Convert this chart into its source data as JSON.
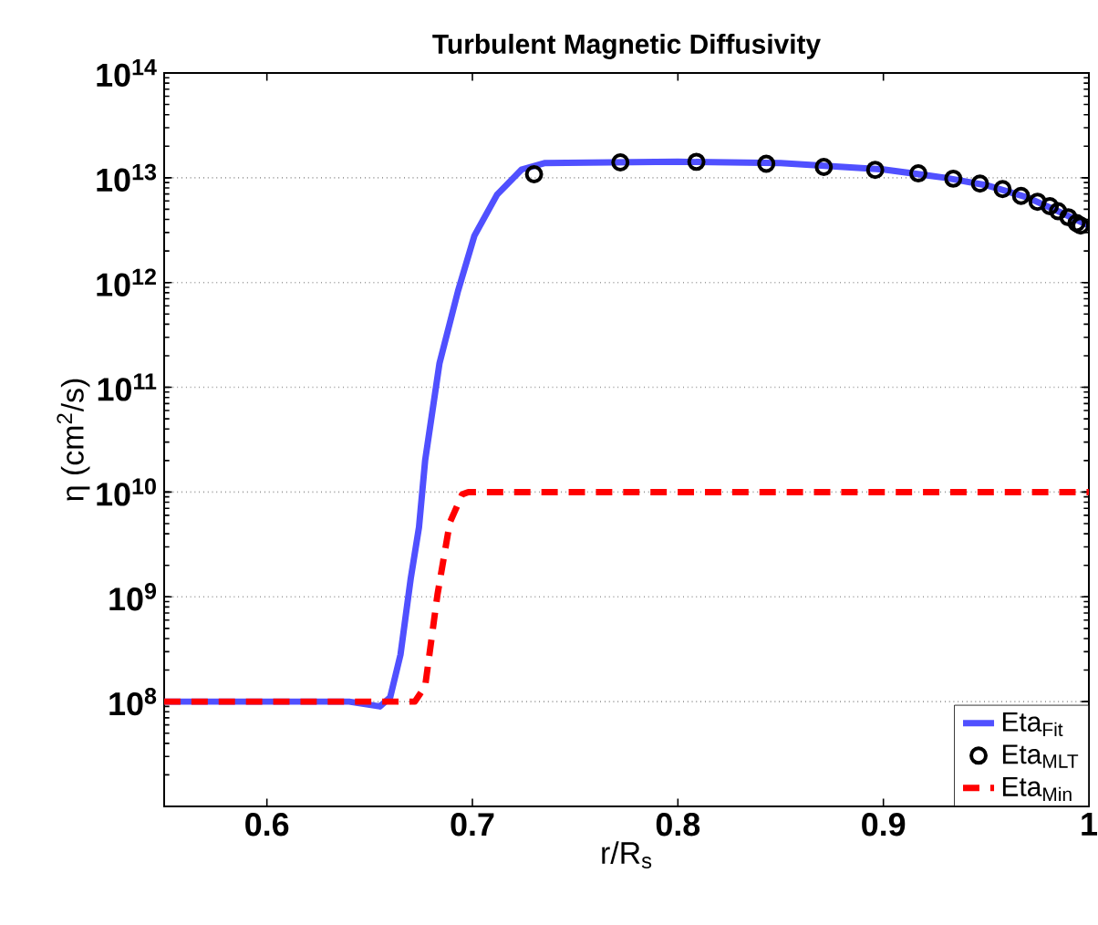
{
  "chart_data": {
    "type": "line",
    "title": "Turbulent Magnetic Diffusivity",
    "xlabel": "r/R$_{s}$",
    "ylabel": "η (cm$^{2}$/s)",
    "xlim": [
      0.55,
      1
    ],
    "xticks": [
      0.6,
      0.7,
      0.8,
      0.9,
      1
    ],
    "ylim": [
      10000000.0,
      100000000000000.0
    ],
    "log": "y",
    "yticks": [
      {
        "value": 10000000.0,
        "label": null
      },
      {
        "value": 100000000.0,
        "label": "10$^{8}$"
      },
      {
        "value": 1000000000.0,
        "label": "10$^{9}$"
      },
      {
        "value": 10000000000.0,
        "label": "10$^{10}$"
      },
      {
        "value": 100000000000.0,
        "label": "10$^{11}$"
      },
      {
        "value": 1000000000000.0,
        "label": "10$^{12}$"
      },
      {
        "value": 10000000000000.0,
        "label": "10$^{13}$"
      },
      {
        "value": 100000000000000.0,
        "label": "10$^{14}$"
      }
    ],
    "grid": "y",
    "legend": "bottom right",
    "series": [
      {
        "name": "Eta$_{Fit}$",
        "line_style": "solid",
        "marker": "none",
        "color": "#5050ff",
        "x": [
          0.55,
          0.64,
          0.655,
          0.66,
          0.665,
          0.67,
          0.674,
          0.677,
          0.684,
          0.693,
          0.701,
          0.712,
          0.724,
          0.735,
          0.8,
          0.85,
          0.9,
          0.93,
          0.95,
          0.97,
          0.985,
          1.0
        ],
        "values": [
          100000000.0,
          100000000.0,
          90000000.0,
          110000000.0,
          280000000.0,
          1500000000.0,
          4600000000.0,
          20000000000.0,
          170000000000.0,
          830000000000.0,
          2800000000000.0,
          6900000000000.0,
          12000000000000.0,
          13800000000000.0,
          14200000000000.0,
          13800000000000.0,
          12000000000000.0,
          10000000000000.0,
          8500000000000.0,
          6500000000000.0,
          4800000000000.0,
          3500000000000.0
        ]
      },
      {
        "name": "Eta$_{MLT}$",
        "type": "scatter",
        "marker": "circle",
        "color": "#000000",
        "x": [
          0.73,
          0.772,
          0.809,
          0.843,
          0.871,
          0.896,
          0.917,
          0.934,
          0.947,
          0.958,
          0.967,
          0.975,
          0.981,
          0.985,
          0.99,
          0.994,
          0.996
        ],
        "values": [
          10800000000000.0,
          14000000000000.0,
          14200000000000.0,
          13600000000000.0,
          12700000000000.0,
          11900000000000.0,
          11000000000000.0,
          9800000000000.0,
          8800000000000.0,
          7800000000000.0,
          6700000000000.0,
          5900000000000.0,
          5350000000000.0,
          4800000000000.0,
          4200000000000.0,
          3700000000000.0,
          3500000000000.0
        ]
      },
      {
        "name": "Eta$_{Min}$",
        "line_style": "dashed",
        "marker": "none",
        "color": "#ff0000",
        "x": [
          0.55,
          0.672,
          0.677,
          0.683,
          0.689,
          0.695,
          0.698,
          1.0
        ],
        "values": [
          100000000.0,
          100000000.0,
          140000000.0,
          1050000000.0,
          5100000000.0,
          9500000000.0,
          10000000000.0,
          10000000000.0
        ]
      }
    ]
  }
}
